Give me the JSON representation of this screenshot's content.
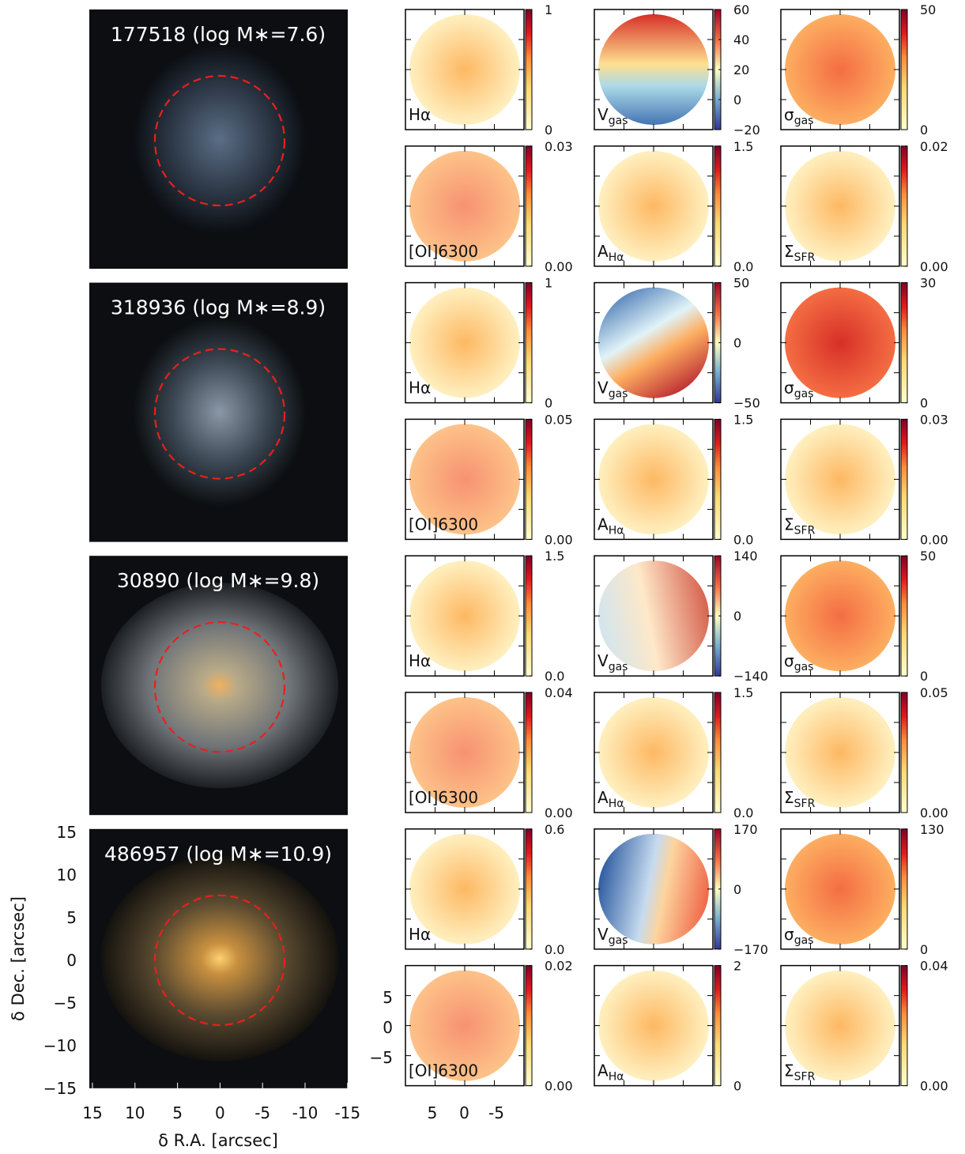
{
  "galaxies": [
    {
      "label": "177518 (log M∗=7.6)",
      "maps": [
        {
          "label": {
            "main": "Hα"
          },
          "ticks": [
            "1",
            "0"
          ]
        },
        {
          "label": {
            "main": "V",
            "sub": "gas"
          },
          "ticks": [
            "60",
            "40",
            "20",
            "0",
            "−20"
          ]
        },
        {
          "label": {
            "main": "σ",
            "sub": "gas"
          },
          "ticks": [
            "50",
            "0"
          ]
        },
        {
          "label": {
            "main": "[OI]6300"
          },
          "ticks": [
            "0.03",
            "0.00"
          ]
        },
        {
          "label": {
            "main": "A",
            "sub": "Hα"
          },
          "ticks": [
            "1.5",
            "0.0"
          ]
        },
        {
          "label": {
            "main": "Σ",
            "sub": "SFR"
          },
          "ticks": [
            "0.02",
            "0.00"
          ]
        }
      ]
    },
    {
      "label": "318936 (log M∗=8.9)",
      "maps": [
        {
          "label": {
            "main": "Hα"
          },
          "ticks": [
            "1",
            "0"
          ]
        },
        {
          "label": {
            "main": "V",
            "sub": "gas"
          },
          "ticks": [
            "50",
            "0",
            "−50"
          ]
        },
        {
          "label": {
            "main": "σ",
            "sub": "gas"
          },
          "ticks": [
            "30",
            "0"
          ]
        },
        {
          "label": {
            "main": "[OI]6300"
          },
          "ticks": [
            "0.05",
            "0.00"
          ]
        },
        {
          "label": {
            "main": "A",
            "sub": "Hα"
          },
          "ticks": [
            "1.5",
            "0.0"
          ]
        },
        {
          "label": {
            "main": "Σ",
            "sub": "SFR"
          },
          "ticks": [
            "0.03",
            "0.00"
          ]
        }
      ]
    },
    {
      "label": "30890 (log M∗=9.8)",
      "maps": [
        {
          "label": {
            "main": "Hα"
          },
          "ticks": [
            "1.5",
            "0.0"
          ]
        },
        {
          "label": {
            "main": "V",
            "sub": "gas"
          },
          "ticks": [
            "140",
            "0",
            "−140"
          ]
        },
        {
          "label": {
            "main": "σ",
            "sub": "gas"
          },
          "ticks": [
            "50",
            "0"
          ]
        },
        {
          "label": {
            "main": "[OI]6300"
          },
          "ticks": [
            "0.04",
            "0.00"
          ]
        },
        {
          "label": {
            "main": "A",
            "sub": "Hα"
          },
          "ticks": [
            "1.5",
            "0.0"
          ]
        },
        {
          "label": {
            "main": "Σ",
            "sub": "SFR"
          },
          "ticks": [
            "0.05",
            "0.00"
          ]
        }
      ]
    },
    {
      "label": "486957 (log M∗=10.9)",
      "maps": [
        {
          "label": {
            "main": "Hα"
          },
          "ticks": [
            "0.6",
            "0.0"
          ]
        },
        {
          "label": {
            "main": "V",
            "sub": "gas"
          },
          "ticks": [
            "170",
            "0",
            "−170"
          ]
        },
        {
          "label": {
            "main": "σ",
            "sub": "gas"
          },
          "ticks": [
            "130",
            "0"
          ]
        },
        {
          "label": {
            "main": "[OI]6300"
          },
          "ticks": [
            "0.02",
            "0.00"
          ]
        },
        {
          "label": {
            "main": "A",
            "sub": "Hα"
          },
          "ticks": [
            "2",
            "0"
          ]
        },
        {
          "label": {
            "main": "Σ",
            "sub": "SFR"
          },
          "ticks": [
            "0.04",
            "0.00"
          ]
        }
      ]
    }
  ],
  "axes": {
    "ra_label": "δ R.A. [arcsec]",
    "dec_label": "δ Dec. [arcsec]",
    "ra_ticks": [
      "15",
      "10",
      "5",
      "0",
      "-5",
      "-10",
      "-15"
    ],
    "dec_ticks": [
      "15",
      "10",
      "5",
      "0",
      "−5",
      "−10",
      "−15"
    ],
    "map_x_ticks": [
      "5",
      "0",
      "-5"
    ],
    "map_y_ticks": [
      "5",
      "0",
      "−5"
    ]
  }
}
